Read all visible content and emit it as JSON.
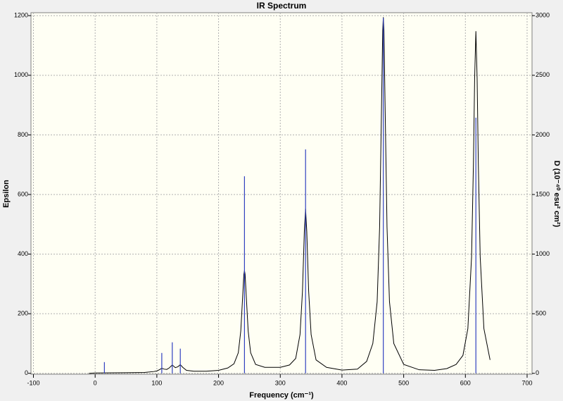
{
  "chart_data": {
    "type": "line",
    "title": "IR Spectrum",
    "x_label": "Frequency (cm⁻¹)",
    "y_label": "Epsilon",
    "y2_label": "D (10⁻⁴⁰ esu² cm²)",
    "xlim": [
      -104,
      708
    ],
    "xticks": [
      -100,
      0,
      100,
      200,
      300,
      400,
      500,
      600,
      700
    ],
    "ylim": [
      -3,
      1210
    ],
    "yticks": [
      0,
      200,
      400,
      600,
      800,
      1000,
      1200
    ],
    "y2lim": [
      -7.5,
      3025
    ],
    "y2ticks": [
      0,
      500,
      1000,
      1500,
      2000,
      2500,
      3000
    ],
    "grid": true,
    "background": "#fffff4",
    "series": [
      {
        "color": "#000000",
        "x": [
          -10,
          0,
          50,
          80,
          95,
          100,
          104,
          108,
          112,
          116,
          120,
          125,
          130,
          134,
          138,
          142,
          148,
          160,
          180,
          200,
          215,
          225,
          232,
          236,
          239,
          241,
          242,
          243,
          245,
          248,
          252,
          260,
          275,
          300,
          315,
          325,
          332,
          336,
          339,
          341,
          343,
          346,
          350,
          358,
          375,
          400,
          425,
          440,
          450,
          457,
          461,
          464,
          466,
          467,
          468,
          470,
          473,
          477,
          484,
          500,
          525,
          550,
          570,
          585,
          596,
          604,
          610,
          613,
          615,
          617,
          619,
          621,
          624,
          630,
          640
        ],
        "values": [
          0,
          1,
          2,
          3,
          6,
          8,
          12,
          17,
          14,
          13,
          18,
          28,
          19,
          22,
          29,
          20,
          10,
          7,
          7,
          10,
          18,
          32,
          69,
          142,
          255,
          332,
          345,
          332,
          255,
          142,
          69,
          30,
          20,
          20,
          28,
          50,
          130,
          276,
          475,
          552,
          475,
          276,
          130,
          45,
          20,
          11,
          14,
          40,
          100,
          240,
          490,
          880,
          1150,
          1195,
          1150,
          880,
          490,
          240,
          100,
          30,
          12,
          10,
          16,
          30,
          60,
          150,
          390,
          700,
          990,
          1148,
          990,
          700,
          390,
          150,
          45
        ]
      },
      {
        "color": "#3040c0",
        "axis": "y2",
        "style": "stick",
        "x": [
          15,
          108,
          125,
          138,
          242,
          341,
          467,
          617
        ],
        "values": [
          94,
          171,
          260,
          207,
          1653,
          1878,
          2982,
          2144
        ]
      }
    ]
  }
}
